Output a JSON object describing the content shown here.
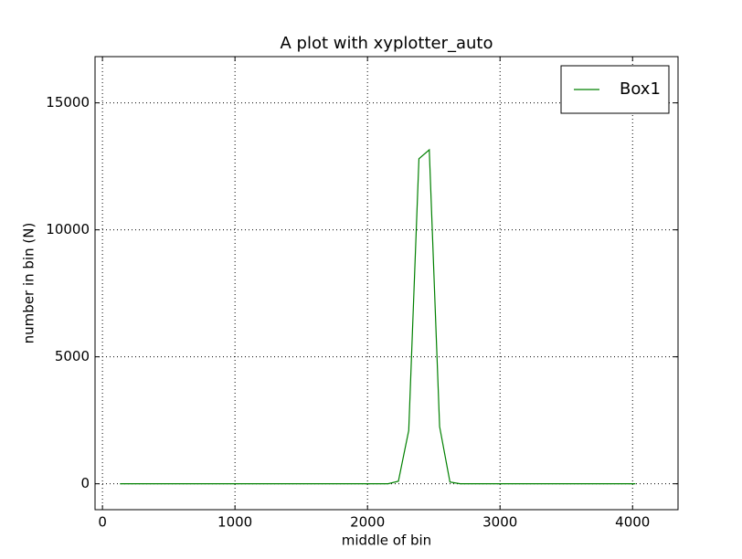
{
  "chart_data": {
    "type": "line",
    "title": "A plot with xyplotter_auto",
    "xlabel": "middle of bin",
    "ylabel": "number in bin (N)",
    "x": [
      132,
      210,
      288,
      365,
      443,
      521,
      599,
      677,
      754,
      832,
      910,
      988,
      1066,
      1143,
      1221,
      1299,
      1377,
      1455,
      1532,
      1610,
      1688,
      1766,
      1844,
      1921,
      1999,
      2077,
      2155,
      2233,
      2311,
      2388,
      2466,
      2544,
      2622,
      2699,
      2777,
      2855,
      2933,
      3011,
      3088,
      3166,
      3244,
      3322,
      3400,
      3477,
      3555,
      3633,
      3711,
      3789,
      3866,
      3944,
      4022
    ],
    "series": [
      {
        "name": "Box1",
        "color": "#008000",
        "values": [
          0,
          0,
          0,
          0,
          0,
          0,
          0,
          0,
          0,
          0,
          0,
          0,
          0,
          0,
          0,
          0,
          0,
          0,
          0,
          0,
          0,
          0,
          0,
          0,
          0,
          0,
          0,
          100,
          2100,
          12800,
          13150,
          2250,
          70,
          0,
          0,
          0,
          0,
          0,
          0,
          0,
          0,
          0,
          0,
          0,
          0,
          0,
          0,
          0,
          0,
          0,
          0
        ]
      }
    ],
    "xlim": [
      -56,
      4343
    ],
    "ylim": [
      -1020,
      16820
    ],
    "xticks": [
      0,
      1000,
      2000,
      3000,
      4000
    ],
    "yticks": [
      0,
      5000,
      10000,
      15000
    ],
    "grid": true,
    "legend": "upper right"
  }
}
